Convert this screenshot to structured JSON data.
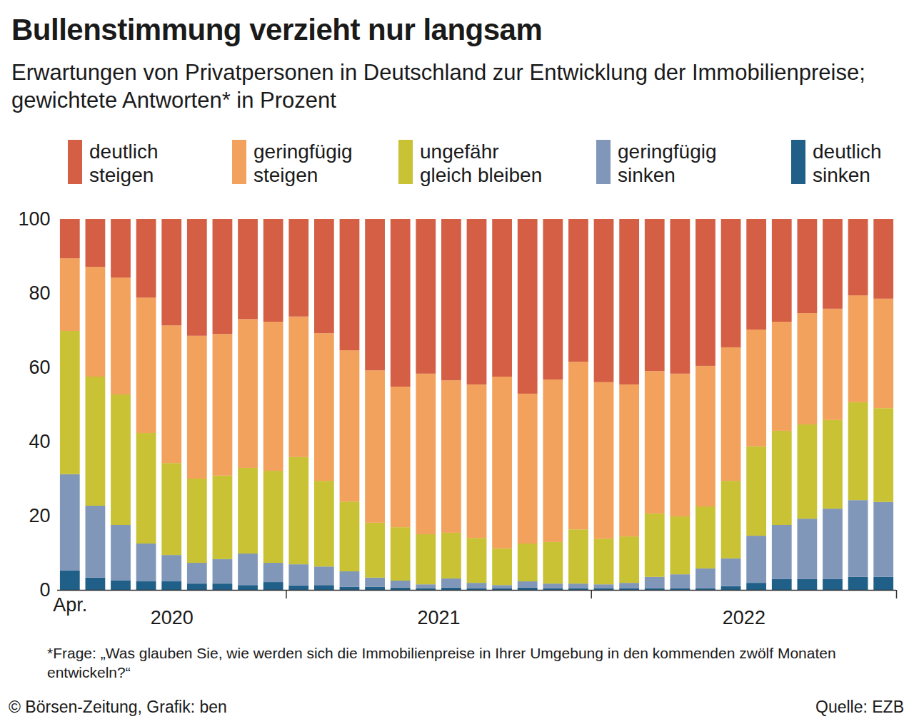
{
  "chart_data": {
    "type": "bar",
    "stacked": true,
    "title": "Bullenstimmung verzieht nur langsam",
    "subtitle": "Erwartungen von Privatpersonen in Deutschland zur Entwicklung der Immobilienpreise; gewichtete Antworten* in Prozent",
    "footnote": "*Frage: „Was glauben Sie, wie werden sich die Immobilienpreise in Ihrer Umgebung in den kommenden zwölf Monaten entwickeln?“",
    "credit": "© Börsen-Zeitung, Grafik: ben",
    "source": "Quelle: EZB",
    "legend": "top",
    "grid": false,
    "categories": [
      "Apr.",
      null,
      null,
      null,
      null,
      null,
      null,
      null,
      null,
      null,
      null,
      null,
      null,
      null,
      null,
      null,
      null,
      null,
      null,
      null,
      null,
      null,
      null,
      null,
      null,
      null,
      null,
      null,
      null,
      null,
      null,
      null,
      null
    ],
    "groups": [
      {
        "label": "2020",
        "count": 9
      },
      {
        "label": "2021",
        "count": 12
      },
      {
        "label": "2022",
        "count": 12
      }
    ],
    "ylim": [
      0,
      100
    ],
    "yticks": [
      0,
      20,
      40,
      60,
      80,
      100
    ],
    "series": [
      {
        "name": "deutlich steigen",
        "color": "#d45f45",
        "values": [
          10.6,
          12.9,
          15.8,
          21.2,
          28.7,
          31.5,
          31.0,
          27.0,
          27.7,
          26.3,
          30.8,
          35.4,
          40.8,
          45.2,
          41.7,
          43.5,
          44.6,
          42.5,
          47.1,
          43.3,
          38.5,
          44.0,
          44.6,
          41.0,
          41.7,
          39.6,
          34.6,
          29.8,
          27.7,
          25.4,
          24.2,
          20.6,
          21.5
        ]
      },
      {
        "name": "geringfügig steigen",
        "color": "#f2a25c",
        "values": [
          19.6,
          29.6,
          31.5,
          36.5,
          37.1,
          38.5,
          38.2,
          40.1,
          40.2,
          37.9,
          39.8,
          40.8,
          41.1,
          37.9,
          43.3,
          41.1,
          41.4,
          46.3,
          40.4,
          43.8,
          45.2,
          42.2,
          41.0,
          38.4,
          38.5,
          37.9,
          36.0,
          31.5,
          29.4,
          30.0,
          30.0,
          28.8,
          29.5
        ]
      },
      {
        "name": "ungefähr gleich bleiben",
        "color": "#c8c234",
        "values": [
          38.6,
          34.8,
          35.2,
          29.8,
          24.8,
          22.7,
          22.5,
          23.1,
          24.8,
          28.9,
          23.1,
          18.8,
          14.8,
          14.4,
          13.5,
          12.3,
          12.1,
          9.9,
          10.2,
          11.2,
          14.6,
          12.3,
          12.5,
          17.1,
          15.6,
          16.7,
          20.9,
          24.1,
          25.4,
          25.4,
          23.9,
          26.4,
          25.3
        ]
      },
      {
        "name": "geringfügig sinken",
        "color": "#8197b9",
        "values": [
          26.0,
          19.4,
          15.0,
          10.2,
          7.1,
          5.6,
          6.6,
          8.5,
          5.2,
          5.7,
          5.0,
          4.2,
          2.5,
          1.9,
          1.1,
          2.5,
          1.5,
          0.9,
          1.7,
          1.3,
          1.3,
          1.1,
          1.5,
          3.1,
          3.8,
          5.4,
          7.5,
          12.7,
          14.6,
          16.3,
          19.0,
          20.7,
          20.2
        ]
      },
      {
        "name": "deutlich sinken",
        "color": "#1f5f88",
        "values": [
          5.2,
          3.3,
          2.5,
          2.3,
          2.3,
          1.7,
          1.7,
          1.3,
          2.1,
          1.2,
          1.3,
          0.8,
          0.8,
          0.6,
          0.4,
          0.6,
          0.4,
          0.4,
          0.6,
          0.4,
          0.4,
          0.4,
          0.4,
          0.4,
          0.4,
          0.4,
          1.0,
          1.9,
          2.9,
          2.9,
          2.9,
          3.5,
          3.5
        ]
      }
    ]
  }
}
